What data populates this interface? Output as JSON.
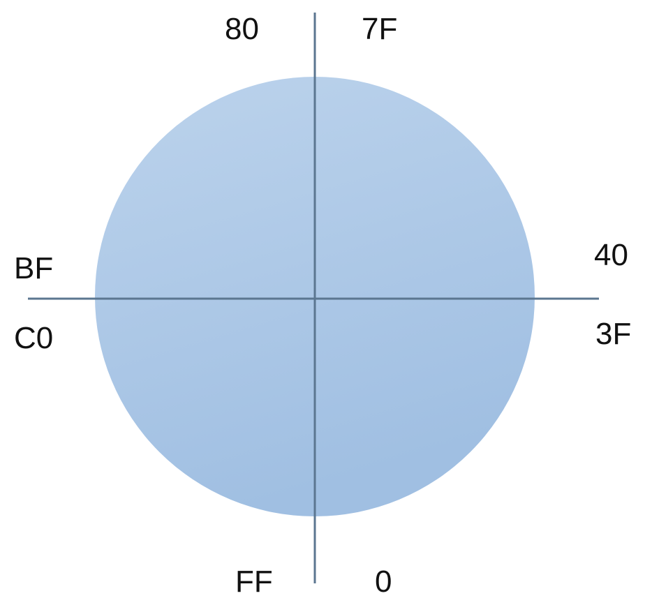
{
  "labels": {
    "top_left": "80",
    "top_right": "7F",
    "left_upper": "BF",
    "left_lower": "C0",
    "right_upper": "40",
    "right_lower": "3F",
    "bottom_left": "FF",
    "bottom_right": "0"
  },
  "colors": {
    "circle_fill_light": "#bad2ec",
    "circle_fill_dark": "#a2c1e3",
    "axis_line": "#5b7690",
    "text": "#111111"
  }
}
